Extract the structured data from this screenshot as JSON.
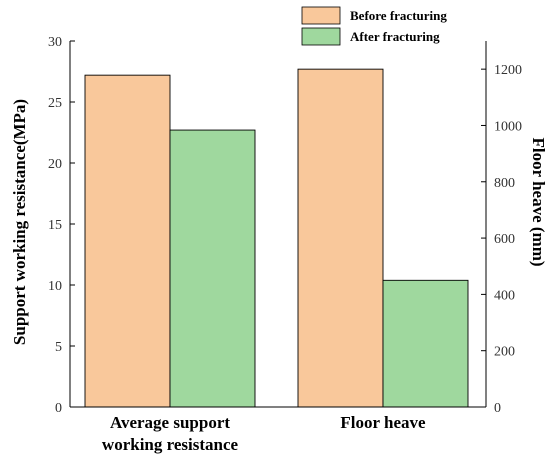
{
  "chart_data": {
    "type": "bar",
    "categories": [
      "Average support working resistance",
      "Floor heave"
    ],
    "category_label_lines": [
      [
        "Average support",
        "working resistance"
      ],
      [
        "Floor heave"
      ]
    ],
    "series": [
      {
        "name": "Before fracturing",
        "color": "#F9C89B",
        "values": [
          27.2,
          1200
        ],
        "axis": [
          "left",
          "right"
        ]
      },
      {
        "name": "After fracturing",
        "color": "#9FD89E",
        "values": [
          22.7,
          450
        ],
        "axis": [
          "left",
          "right"
        ]
      }
    ],
    "ylabel_left": "Support working resistance(MPa)",
    "ylabel_right": "Floor heave (mm)",
    "ylim_left": [
      0,
      30
    ],
    "ylim_right": [
      0,
      1300
    ],
    "yticks_left": [
      0,
      5,
      10,
      15,
      20,
      25,
      30
    ],
    "yticks_right": [
      0,
      200,
      400,
      600,
      800,
      1000,
      1200
    ],
    "legend_position": "top-center",
    "grid": false
  }
}
